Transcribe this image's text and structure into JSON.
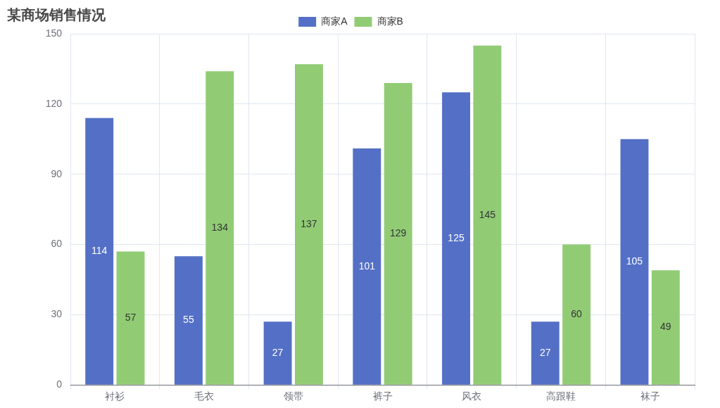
{
  "chart_data": {
    "type": "bar",
    "title": "某商场销售情况",
    "categories": [
      "衬衫",
      "毛衣",
      "领带",
      "裤子",
      "风衣",
      "高跟鞋",
      "袜子"
    ],
    "series": [
      {
        "name": "商家A",
        "color": "#5470c6",
        "values": [
          114,
          55,
          27,
          101,
          125,
          27,
          105
        ]
      },
      {
        "name": "商家B",
        "color": "#91cc75",
        "values": [
          57,
          134,
          137,
          129,
          145,
          60,
          49
        ]
      }
    ],
    "ylim": [
      0,
      150
    ],
    "yticks": [
      0,
      30,
      60,
      90,
      120,
      150
    ],
    "grid": true,
    "legend": "top",
    "data_labels": true
  }
}
